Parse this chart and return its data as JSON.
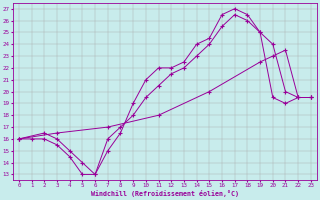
{
  "xlabel": "Windchill (Refroidissement éolien,°C)",
  "background_color": "#c8ecec",
  "line_color": "#990099",
  "xlim": [
    -0.5,
    23.5
  ],
  "ylim": [
    12.5,
    27.5
  ],
  "yticks": [
    13,
    14,
    15,
    16,
    17,
    18,
    19,
    20,
    21,
    22,
    23,
    24,
    25,
    26,
    27
  ],
  "xticks": [
    0,
    1,
    2,
    3,
    4,
    5,
    6,
    7,
    8,
    9,
    10,
    11,
    12,
    13,
    14,
    15,
    16,
    17,
    18,
    19,
    20,
    21,
    22,
    23
  ],
  "line1_x": [
    0,
    1,
    2,
    3,
    4,
    5,
    6,
    7,
    8,
    9,
    10,
    11,
    12,
    13,
    14,
    15,
    16,
    17,
    18,
    19,
    20,
    21,
    22,
    23
  ],
  "line1_y": [
    16,
    16,
    16,
    15.5,
    14.5,
    13,
    13,
    15,
    16.5,
    19,
    21,
    22,
    22,
    22.5,
    24,
    24.5,
    26.5,
    27,
    26.5,
    25,
    24,
    20,
    19.5,
    19.5
  ],
  "line2_x": [
    0,
    2,
    3,
    4,
    5,
    6,
    7,
    8,
    9,
    10,
    11,
    12,
    13,
    14,
    15,
    16,
    17,
    18,
    19,
    20,
    21,
    22,
    23
  ],
  "line2_y": [
    16,
    16.5,
    16,
    15,
    14,
    13,
    16,
    17,
    18,
    19.5,
    20.5,
    21.5,
    22,
    23,
    24,
    25.5,
    26.5,
    26,
    25,
    19.5,
    19,
    19.5,
    19.5
  ],
  "line3_x": [
    0,
    3,
    7,
    11,
    15,
    19,
    20,
    21,
    22,
    23
  ],
  "line3_y": [
    16,
    16.5,
    17,
    18,
    20,
    22.5,
    23,
    23.5,
    19.5,
    19.5
  ]
}
